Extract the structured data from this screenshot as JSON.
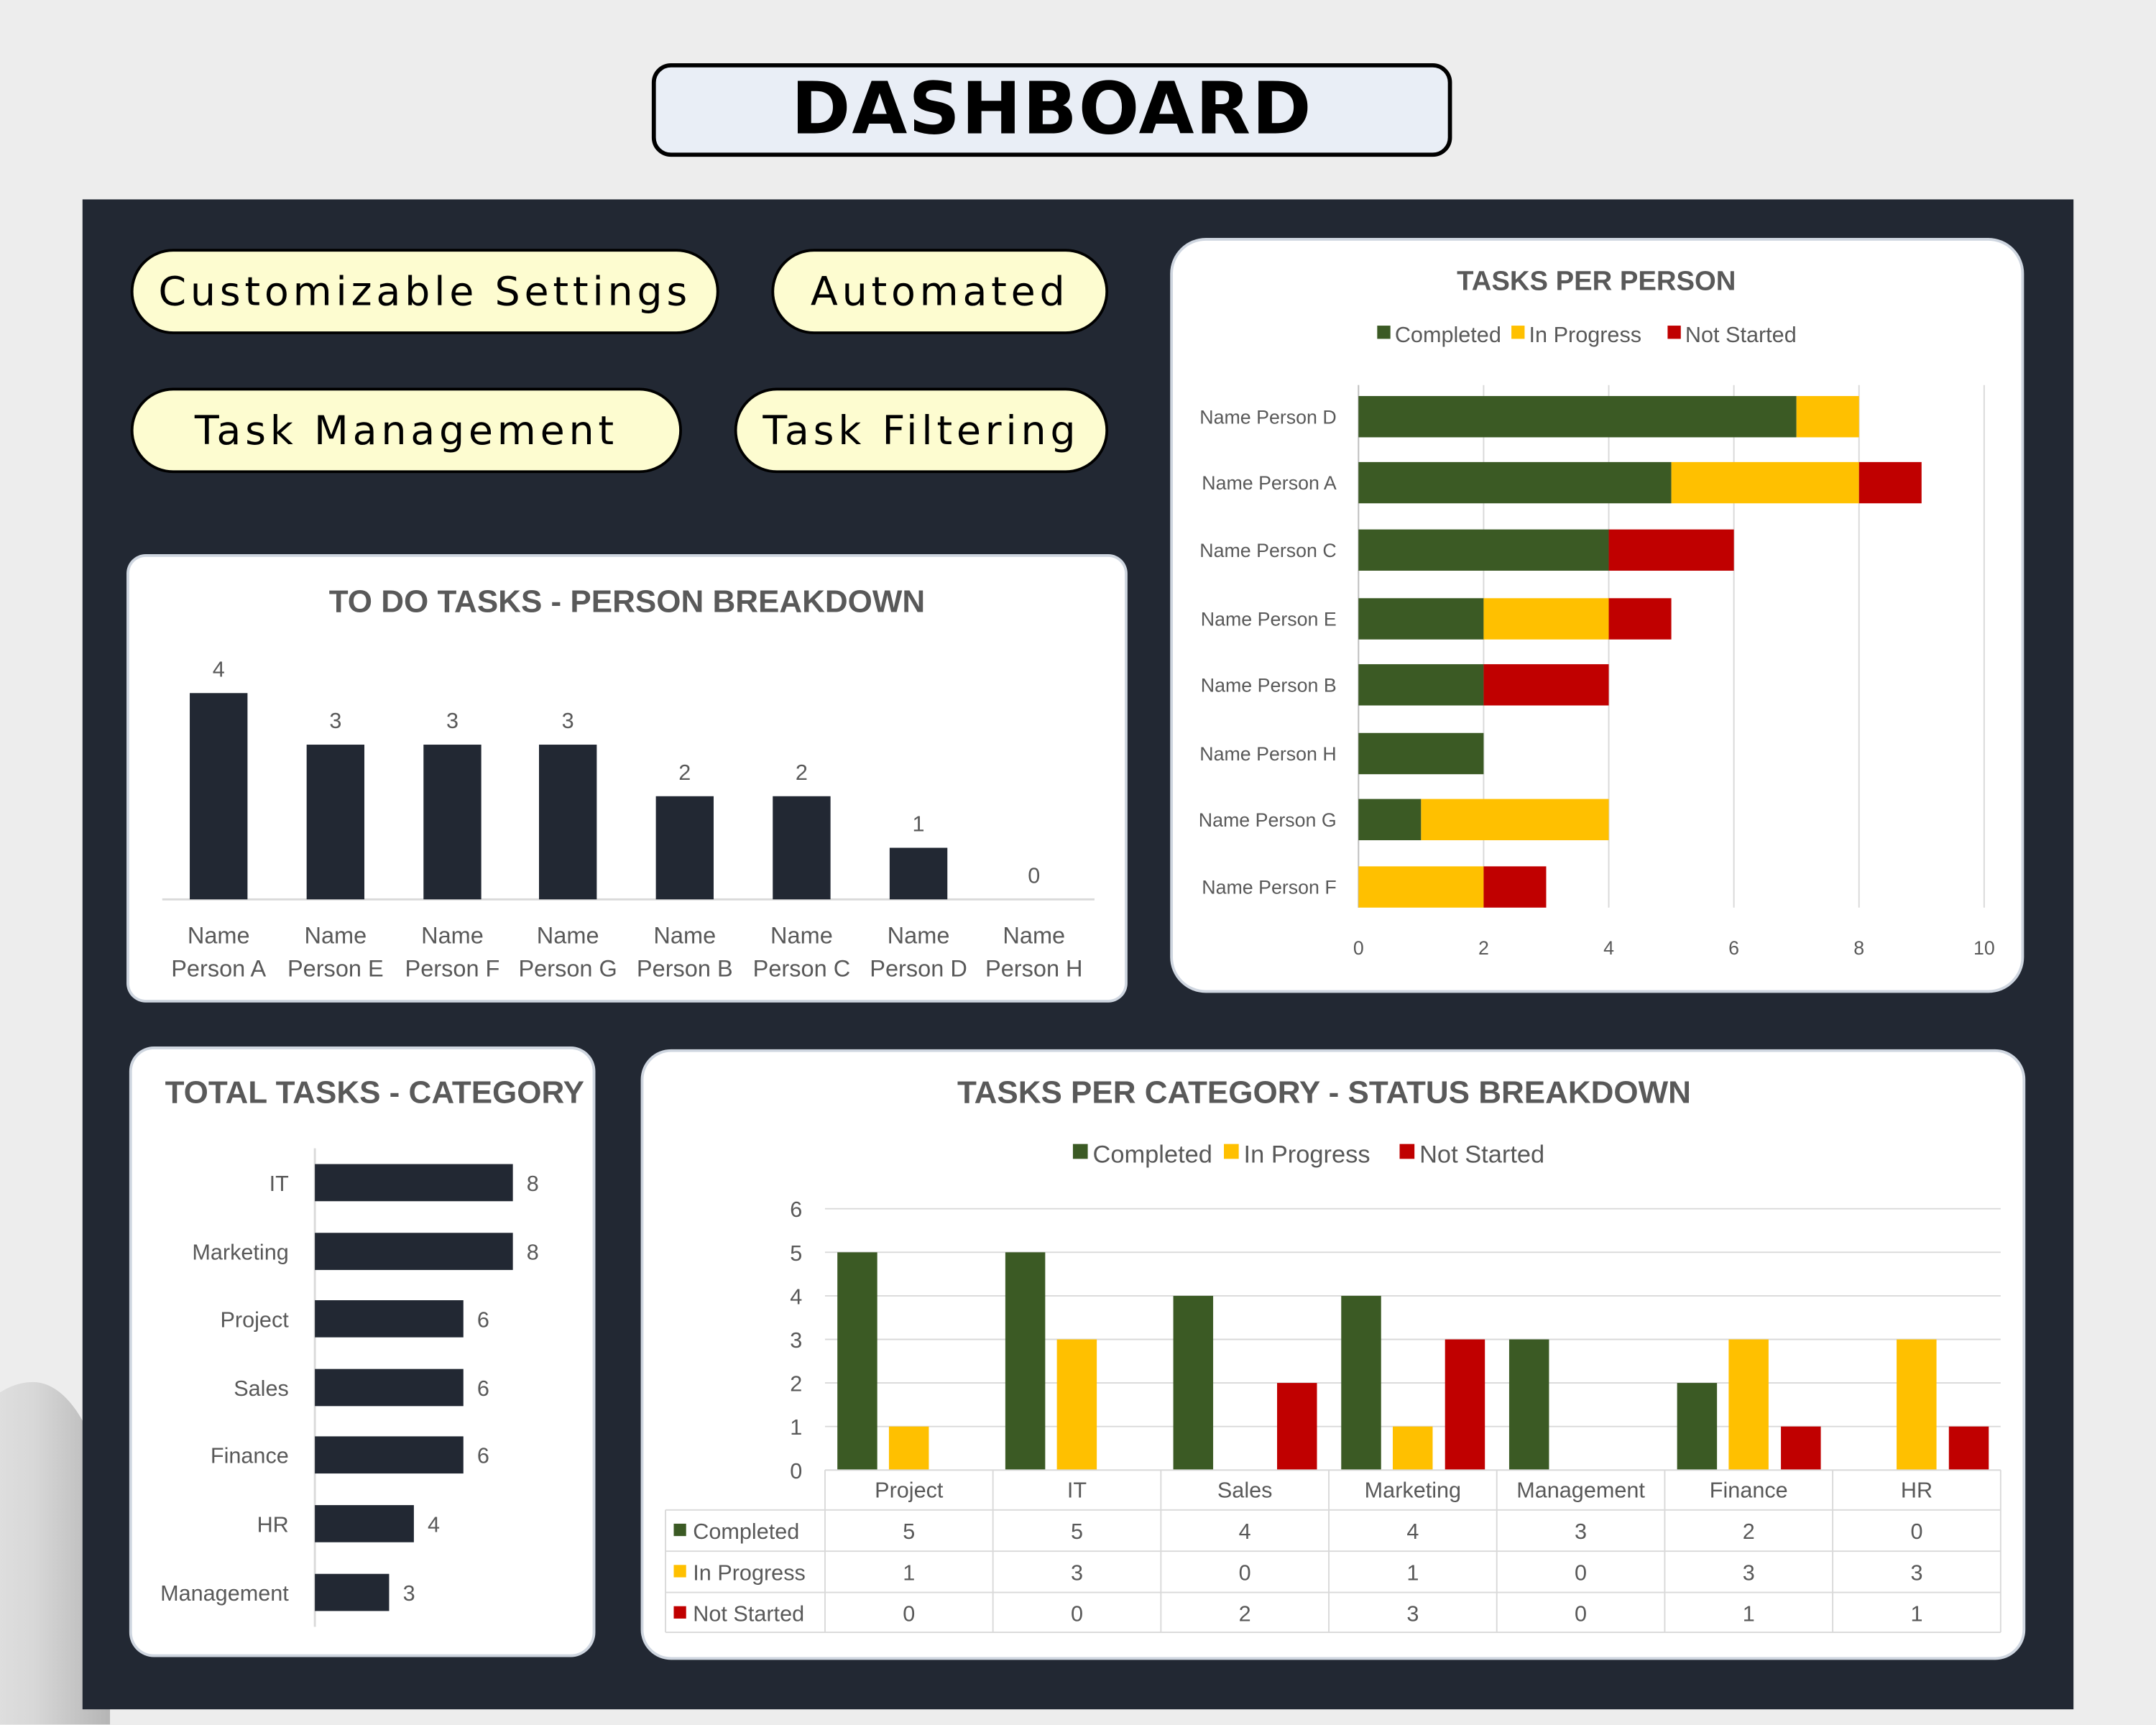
{
  "header": {
    "title": "DASHBOARD"
  },
  "pills": [
    "Customizable Settings",
    "Automated",
    "Task Management",
    "Task Filtering"
  ],
  "colors": {
    "completed": "#3b5a24",
    "in_progress": "#ffc000",
    "not_started": "#c00000",
    "bar_dark": "#222833",
    "panel": "#222833",
    "pill": "#fdfcd0"
  },
  "chart_data": [
    {
      "id": "todo",
      "type": "bar",
      "title": "TO DO TASKS - PERSON BREAKDOWN",
      "categories": [
        [
          "Name",
          "Person A"
        ],
        [
          "Name",
          "Person E"
        ],
        [
          "Name",
          "Person F"
        ],
        [
          "Name",
          "Person G"
        ],
        [
          "Name",
          "Person B"
        ],
        [
          "Name",
          "Person C"
        ],
        [
          "Name",
          "Person D"
        ],
        [
          "Name",
          "Person H"
        ]
      ],
      "values": [
        4,
        3,
        3,
        3,
        2,
        2,
        1,
        0
      ],
      "data_labels": true,
      "grid": false
    },
    {
      "id": "person",
      "type": "bar",
      "orientation": "horizontal",
      "stacked": true,
      "title": "TASKS PER PERSON",
      "legend": "top",
      "categories": [
        "Name Person D",
        "Name Person A",
        "Name Person C",
        "Name Person E",
        "Name Person B",
        "Name Person H",
        "Name Person G",
        "Name Person F"
      ],
      "series": [
        {
          "name": "Completed",
          "values": [
            7,
            5,
            4,
            2,
            2,
            2,
            1,
            0
          ]
        },
        {
          "name": "In Progress",
          "values": [
            1,
            3,
            0,
            2,
            0,
            0,
            3,
            2
          ]
        },
        {
          "name": "Not Started",
          "values": [
            0,
            1,
            2,
            1,
            2,
            0,
            0,
            1
          ]
        }
      ],
      "xlim": [
        0,
        10
      ],
      "xticks": [
        "0",
        "2",
        "4",
        "6",
        "8",
        "10"
      ],
      "grid": true
    },
    {
      "id": "category",
      "type": "bar",
      "orientation": "horizontal",
      "title": "TOTAL TASKS - CATEGORY",
      "categories": [
        "IT",
        "Marketing",
        "Project",
        "Sales",
        "Finance",
        "HR",
        "Management"
      ],
      "values": [
        8,
        8,
        6,
        6,
        6,
        4,
        3
      ],
      "data_labels": true,
      "grid": false
    },
    {
      "id": "status",
      "type": "bar",
      "title": "TASKS PER CATEGORY - STATUS BREAKDOWN",
      "legend": "top",
      "categories": [
        "Project",
        "IT",
        "Sales",
        "Marketing",
        "Management",
        "Finance",
        "HR"
      ],
      "series": [
        {
          "name": "Completed",
          "values": [
            5,
            5,
            4,
            4,
            3,
            2,
            0
          ]
        },
        {
          "name": "In Progress",
          "values": [
            1,
            3,
            0,
            1,
            0,
            3,
            3
          ]
        },
        {
          "name": "Not Started",
          "values": [
            0,
            0,
            2,
            3,
            0,
            1,
            1
          ]
        }
      ],
      "ylim": [
        0,
        6
      ],
      "yticks": [
        "0",
        "1",
        "2",
        "3",
        "4",
        "5",
        "6"
      ],
      "grid": true,
      "data_table": true
    }
  ]
}
